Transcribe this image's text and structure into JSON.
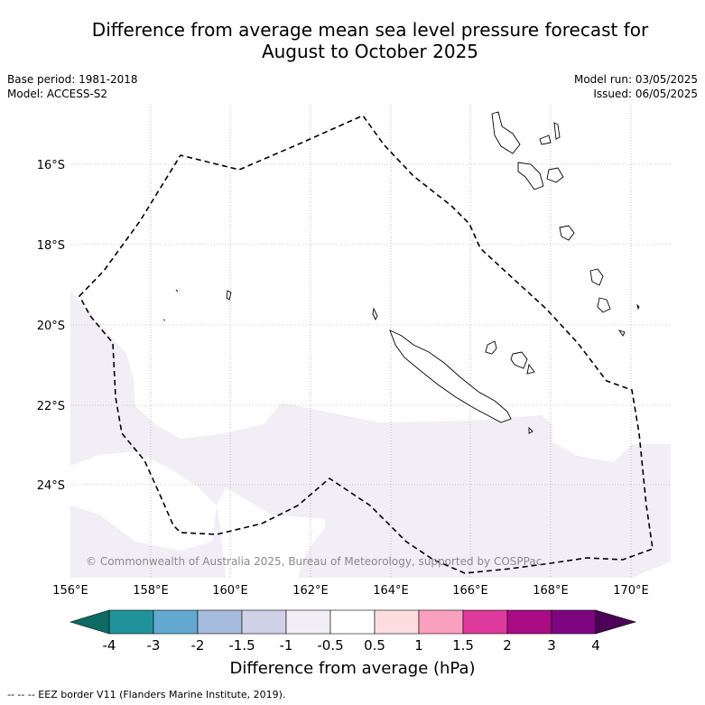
{
  "title_line1": "Difference from average mean sea level pressure forecast for",
  "title_line2": "August to October 2025",
  "meta_left": {
    "base_period": "Base period: 1981-2018",
    "model": "Model: ACCESS-S2"
  },
  "meta_right": {
    "model_run": "Model run: 03/05/2025",
    "issued": "Issued: 06/05/2025"
  },
  "map": {
    "lat_labels": [
      "16°S",
      "18°S",
      "20°S",
      "22°S",
      "24°S"
    ],
    "lon_labels": [
      "156°E",
      "158°E",
      "160°E",
      "162°E",
      "164°E",
      "166°E",
      "168°E",
      "170°E"
    ],
    "copyright": "© Commonwealth of Australia 2025, Bureau of Meteorology, supported by COSPPac",
    "anomaly_fill_color": "#f2eef5",
    "eez_line_color": "#000000"
  },
  "colorbar": {
    "tick_labels": [
      "-4",
      "-3",
      "-2",
      "-1.5",
      "-1",
      "-0.5",
      "0.5",
      "1",
      "1.5",
      "2",
      "3",
      "4"
    ],
    "colors": [
      "#0e6b63",
      "#1f9399",
      "#62a8d0",
      "#a6bcdc",
      "#cfd1e7",
      "#f2eef5",
      "#ffffff",
      "#fddede",
      "#f8a0be",
      "#de3b9e",
      "#aa0a83",
      "#7d0582",
      "#4b0256"
    ],
    "caption": "Difference from average (hPa)"
  },
  "footer": "-- -- -- EEZ border V11 (Flanders Marine Institute, 2019)."
}
